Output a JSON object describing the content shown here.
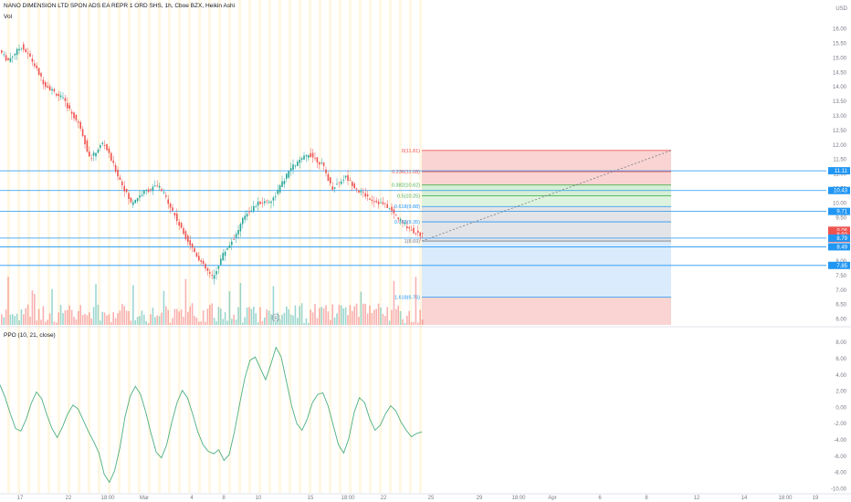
{
  "header": {
    "symbol_line": "NANO DIMENSION LTD SPON ADS EA REPR 1 ORD SHS, 1h, Cboe BZX, Heikin Ashi",
    "volume_label": "Vol",
    "currency": "USD"
  },
  "indicator": {
    "label": "PPO (10, 21, close)"
  },
  "colors": {
    "up": "#26a69a",
    "down": "#ef5350",
    "ppo_line": "#4caf80",
    "hline": "#2196f3",
    "background": "#ffffff",
    "axis_text": "#787b86",
    "session_band": "#fff3d6"
  },
  "chart_data": [
    {
      "type": "candlestick",
      "yaxis_ticks": [
        "16.00",
        "15.50",
        "15.00",
        "14.50",
        "14.00",
        "13.50",
        "13.00",
        "12.50",
        "12.00",
        "11.50",
        "11.00",
        "10.50",
        "10.00",
        "9.50",
        "9.00",
        "8.50",
        "8.00",
        "7.50",
        "7.00",
        "6.50",
        "6.00"
      ],
      "ylim": [
        5.8,
        16.3
      ],
      "xaxis_ticks": [
        "17",
        "22",
        "18:00",
        "Mar",
        "4",
        "8",
        "10",
        "15",
        "18:00",
        "22",
        "25",
        "29",
        "18:00",
        "Apr",
        "6",
        "8",
        "12",
        "14",
        "18:00",
        "19"
      ],
      "horizontal_levels": [
        11.11,
        10.43,
        9.71,
        8.79,
        8.49,
        7.85
      ],
      "price_badges": [
        {
          "label": "11.11",
          "value": 11.11,
          "color": "#2196f3"
        },
        {
          "label": "10.43",
          "value": 10.43,
          "color": "#2196f3"
        },
        {
          "label": "9.71",
          "value": 9.71,
          "color": "#2196f3"
        },
        {
          "label": "9.06",
          "value": 9.06,
          "color": "#ef5350"
        },
        {
          "label": "8.92",
          "value": 8.92,
          "color": "#ef5350"
        },
        {
          "label": "00:57",
          "value": 8.77,
          "color": "#ef5350"
        },
        {
          "label": "8.79",
          "value": 8.79,
          "color": "#2196f3"
        },
        {
          "label": "8.49",
          "value": 8.49,
          "color": "#2196f3"
        },
        {
          "label": "7.85",
          "value": 7.85,
          "color": "#2196f3"
        }
      ],
      "fib_levels": [
        {
          "label": "0(11.81)",
          "value": 11.81,
          "color": "#ef5350"
        },
        {
          "label": "0.236(11.08)",
          "value": 11.08,
          "color": "#ef5350"
        },
        {
          "label": "0.382(10.62)",
          "value": 10.62,
          "color": "#4caf50"
        },
        {
          "label": "0.5(10.25)",
          "value": 10.25,
          "color": "#4caf50"
        },
        {
          "label": "0.618(9.88)",
          "value": 9.88,
          "color": "#2196f3"
        },
        {
          "label": "0.786(9.35)",
          "value": 9.35,
          "color": "#2196f3"
        },
        {
          "label": "1(8.69)",
          "value": 8.69,
          "color": "#787b86"
        },
        {
          "label": "1.618(6.76)",
          "value": 6.76,
          "color": "#2196f3"
        }
      ],
      "annotation_marker": "E"
    },
    {
      "type": "line",
      "name": "PPO (10, 21, close)",
      "yaxis_ticks": [
        "8.00",
        "6.00",
        "4.00",
        "2.00",
        "0.00",
        "-2.00",
        "-4.00",
        "-6.00",
        "-8.00",
        "-10.00"
      ],
      "ylim": [
        -10.5,
        8.8
      ],
      "y": [
        2.8,
        1.2,
        -0.8,
        -2.6,
        -2.9,
        -1.5,
        0.5,
        1.9,
        1.1,
        -0.9,
        -2.6,
        -3.7,
        -2.4,
        -0.8,
        0.3,
        -0.2,
        -1.6,
        -3.0,
        -4.2,
        -5.6,
        -8.2,
        -9.2,
        -7.8,
        -5.0,
        -1.2,
        1.4,
        2.6,
        1.6,
        -0.6,
        -3.2,
        -5.5,
        -6.2,
        -4.6,
        -1.8,
        0.6,
        2.1,
        1.2,
        -0.8,
        -3.0,
        -4.6,
        -5.4,
        -5.7,
        -5.2,
        -6.5,
        -5.8,
        -3.0,
        0.4,
        3.6,
        5.8,
        6.2,
        4.8,
        3.4,
        5.3,
        7.4,
        6.2,
        3.2,
        0.2,
        -2.0,
        -2.8,
        -1.4,
        0.6,
        1.6,
        1.8,
        0.2,
        -2.2,
        -4.6,
        -5.6,
        -3.8,
        -0.6,
        1.2,
        0.6,
        -1.4,
        -2.8,
        -2.2,
        -0.8,
        0.2,
        -0.4,
        -1.8,
        -2.8,
        -3.6,
        -3.2,
        -3.0
      ]
    }
  ]
}
